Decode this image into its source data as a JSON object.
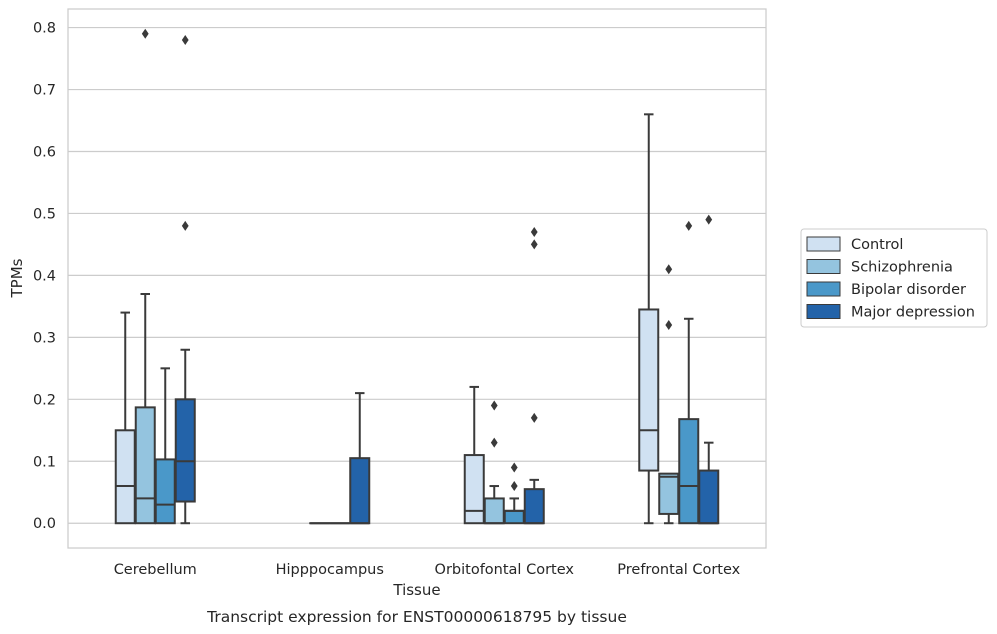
{
  "chart_data": {
    "type": "boxplot",
    "title": "Transcript expression for ENST00000618795 by tissue",
    "xlabel": "Tissue",
    "ylabel": "TPMs",
    "ylim": [
      -0.04,
      0.83
    ],
    "yticks": [
      0.0,
      0.1,
      0.2,
      0.3,
      0.4,
      0.5,
      0.6,
      0.7,
      0.8
    ],
    "ytick_labels": [
      "0.0",
      "0.1",
      "0.2",
      "0.3",
      "0.4",
      "0.5",
      "0.6",
      "0.7",
      "0.8"
    ],
    "grid": true,
    "legend_position": "right",
    "categories": [
      "Cerebellum",
      "Hipppocampus",
      "Orbitofontal Cortex",
      "Prefrontal Cortex"
    ],
    "series": [
      {
        "name": "Control",
        "color": "#d0e1f2",
        "boxes": [
          {
            "whislo": 0.0,
            "q1": 0.0,
            "med": 0.06,
            "q3": 0.15,
            "whishi": 0.34,
            "fliers": []
          },
          null,
          {
            "whislo": 0.0,
            "q1": 0.0,
            "med": 0.02,
            "q3": 0.11,
            "whishi": 0.22,
            "fliers": []
          },
          {
            "whislo": 0.0,
            "q1": 0.085,
            "med": 0.15,
            "q3": 0.345,
            "whishi": 0.66,
            "fliers": []
          }
        ]
      },
      {
        "name": "Schizophrenia",
        "color": "#94c4df",
        "boxes": [
          {
            "whislo": 0.0,
            "q1": 0.0,
            "med": 0.04,
            "q3": 0.187,
            "whishi": 0.37,
            "fliers": [
              0.79
            ]
          },
          {
            "whislo": 0.0,
            "q1": 0.0,
            "med": 0.0,
            "q3": 0.0,
            "whishi": 0.0,
            "fliers": []
          },
          {
            "whislo": 0.0,
            "q1": 0.0,
            "med": 0.0,
            "q3": 0.04,
            "whishi": 0.06,
            "fliers": [
              0.13,
              0.19
            ]
          },
          {
            "whislo": 0.0,
            "q1": 0.015,
            "med": 0.075,
            "q3": 0.08,
            "whishi": 0.08,
            "fliers": [
              0.32,
              0.41
            ]
          }
        ]
      },
      {
        "name": "Bipolar disorder",
        "color": "#4a98c9",
        "boxes": [
          {
            "whislo": 0.0,
            "q1": 0.0,
            "med": 0.03,
            "q3": 0.103,
            "whishi": 0.25,
            "fliers": []
          },
          {
            "whislo": 0.0,
            "q1": 0.0,
            "med": 0.0,
            "q3": 0.0,
            "whishi": 0.0,
            "fliers": []
          },
          {
            "whislo": 0.0,
            "q1": 0.0,
            "med": 0.02,
            "q3": 0.02,
            "whishi": 0.04,
            "fliers": [
              0.06,
              0.09
            ]
          },
          {
            "whislo": 0.0,
            "q1": 0.0,
            "med": 0.06,
            "q3": 0.168,
            "whishi": 0.33,
            "fliers": [
              0.48
            ]
          }
        ]
      },
      {
        "name": "Major depression",
        "color": "#2363a9",
        "boxes": [
          {
            "whislo": 0.0,
            "q1": 0.035,
            "med": 0.1,
            "q3": 0.2,
            "whishi": 0.28,
            "fliers": [
              0.48,
              0.78
            ]
          },
          {
            "whislo": 0.0,
            "q1": 0.0,
            "med": 0.0,
            "q3": 0.105,
            "whishi": 0.21,
            "fliers": []
          },
          {
            "whislo": 0.0,
            "q1": 0.0,
            "med": 0.0,
            "q3": 0.055,
            "whishi": 0.07,
            "fliers": [
              0.17,
              0.45,
              0.47
            ]
          },
          {
            "whislo": 0.0,
            "q1": 0.0,
            "med": 0.0,
            "q3": 0.085,
            "whishi": 0.13,
            "fliers": [
              0.49
            ]
          }
        ]
      }
    ]
  }
}
